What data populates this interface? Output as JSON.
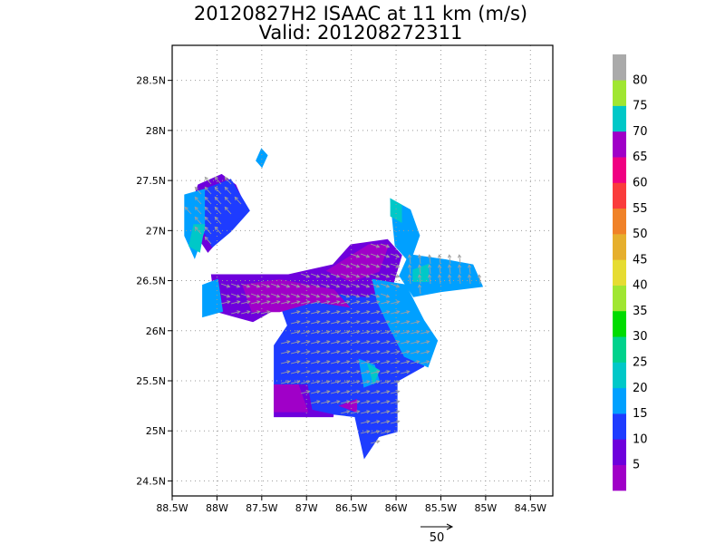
{
  "chart_data": {
    "type": "heatmap",
    "title": "20120827H2 ISAAC at 11 km (m/s)",
    "subtitle": "Valid: 201208272311",
    "xlim": [
      -88.5,
      -84.25
    ],
    "ylim": [
      24.35,
      28.85
    ],
    "x_ticks": [
      {
        "value": -88.5,
        "label": "88.5W"
      },
      {
        "value": -88.0,
        "label": "88W"
      },
      {
        "value": -87.5,
        "label": "87.5W"
      },
      {
        "value": -87.0,
        "label": "87W"
      },
      {
        "value": -86.5,
        "label": "86.5W"
      },
      {
        "value": -86.0,
        "label": "86W"
      },
      {
        "value": -85.5,
        "label": "85.5W"
      },
      {
        "value": -85.0,
        "label": "85W"
      },
      {
        "value": -84.5,
        "label": "84.5W"
      }
    ],
    "y_ticks": [
      {
        "value": 24.5,
        "label": "24.5N"
      },
      {
        "value": 25.0,
        "label": "25N"
      },
      {
        "value": 25.5,
        "label": "25.5N"
      },
      {
        "value": 26.0,
        "label": "26N"
      },
      {
        "value": 26.5,
        "label": "26.5N"
      },
      {
        "value": 27.0,
        "label": "27N"
      },
      {
        "value": 27.5,
        "label": "27.5N"
      },
      {
        "value": 28.0,
        "label": "28N"
      },
      {
        "value": 28.5,
        "label": "28.5N"
      }
    ],
    "grid": true,
    "colorbar": {
      "colors": [
        "#a000c8",
        "#6e00dc",
        "#1e3cff",
        "#00a0ff",
        "#00c8c8",
        "#00d28c",
        "#00dc00",
        "#a0e632",
        "#e6dc32",
        "#e6af2d",
        "#f08228",
        "#fa3c3c",
        "#f00082",
        "#a000c8",
        "#00c8c8",
        "#a0e632",
        "#aaaaaa"
      ],
      "labels": [
        "5",
        "10",
        "15",
        "20",
        "25",
        "30",
        "35",
        "40",
        "45",
        "50",
        "55",
        "60",
        "65",
        "70",
        "75",
        "80"
      ]
    },
    "reference_vector": {
      "value": 50,
      "label": "50"
    },
    "regions": [
      {
        "level": 15,
        "color": "#1e3cff",
        "points": [
          [
            -87.3,
            26.45
          ],
          [
            -86.25,
            26.55
          ],
          [
            -86.1,
            26.3
          ],
          [
            -85.65,
            25.95
          ],
          [
            -85.7,
            25.65
          ],
          [
            -86.0,
            25.5
          ],
          [
            -86.0,
            25.0
          ],
          [
            -86.2,
            24.95
          ],
          [
            -86.35,
            24.75
          ],
          [
            -86.45,
            25.15
          ],
          [
            -86.95,
            25.2
          ],
          [
            -87.1,
            25.4
          ],
          [
            -87.35,
            25.45
          ],
          [
            -87.35,
            25.85
          ],
          [
            -87.2,
            26.05
          ],
          [
            -87.3,
            26.3
          ]
        ]
      },
      {
        "level": 10,
        "color": "#6e00dc",
        "points": [
          [
            -88.05,
            26.55
          ],
          [
            -87.2,
            26.55
          ],
          [
            -86.7,
            26.65
          ],
          [
            -86.5,
            26.85
          ],
          [
            -86.1,
            26.9
          ],
          [
            -85.95,
            26.75
          ],
          [
            -86.05,
            26.45
          ],
          [
            -86.35,
            26.35
          ],
          [
            -86.9,
            26.4
          ],
          [
            -87.3,
            26.25
          ],
          [
            -87.6,
            26.1
          ],
          [
            -88.0,
            26.2
          ]
        ]
      },
      {
        "level": 10,
        "color": "#6e00dc",
        "points": [
          [
            -87.35,
            25.45
          ],
          [
            -87.0,
            25.45
          ],
          [
            -86.95,
            25.2
          ],
          [
            -86.7,
            25.15
          ],
          [
            -87.35,
            25.15
          ]
        ]
      },
      {
        "level": 5,
        "color": "#a000c8",
        "points": [
          [
            -87.7,
            26.45
          ],
          [
            -87.3,
            26.5
          ],
          [
            -87.0,
            26.45
          ],
          [
            -86.7,
            26.4
          ],
          [
            -86.55,
            26.25
          ],
          [
            -86.9,
            26.3
          ],
          [
            -87.3,
            26.2
          ],
          [
            -87.6,
            26.2
          ]
        ]
      },
      {
        "level": 5,
        "color": "#a000c8",
        "points": [
          [
            -86.75,
            26.6
          ],
          [
            -86.3,
            26.85
          ],
          [
            -86.1,
            26.85
          ],
          [
            -86.2,
            26.6
          ],
          [
            -86.5,
            26.5
          ]
        ]
      },
      {
        "level": 5,
        "color": "#a000c8",
        "points": [
          [
            -87.35,
            25.45
          ],
          [
            -87.1,
            25.45
          ],
          [
            -87.0,
            25.2
          ],
          [
            -87.35,
            25.2
          ]
        ]
      },
      {
        "level": 5,
        "color": "#a000c8",
        "points": [
          [
            -86.6,
            25.25
          ],
          [
            -86.45,
            25.2
          ],
          [
            -86.45,
            25.3
          ]
        ]
      },
      {
        "level": 10,
        "color": "#6e00dc",
        "points": [
          [
            -88.2,
            27.45
          ],
          [
            -87.95,
            27.55
          ],
          [
            -87.8,
            27.45
          ],
          [
            -87.7,
            27.25
          ],
          [
            -87.95,
            26.95
          ],
          [
            -88.1,
            26.8
          ],
          [
            -88.25,
            27.0
          ],
          [
            -88.3,
            27.2
          ]
        ]
      },
      {
        "level": 15,
        "color": "#1e3cff",
        "points": [
          [
            -88.15,
            27.4
          ],
          [
            -87.85,
            27.5
          ],
          [
            -87.65,
            27.2
          ],
          [
            -87.85,
            27.0
          ],
          [
            -88.05,
            26.85
          ],
          [
            -88.2,
            27.1
          ]
        ]
      },
      {
        "level": 20,
        "color": "#00a0ff",
        "points": [
          [
            -88.35,
            27.35
          ],
          [
            -88.15,
            27.4
          ],
          [
            -88.15,
            27.0
          ],
          [
            -88.25,
            26.75
          ],
          [
            -88.35,
            26.95
          ]
        ]
      },
      {
        "level": 20,
        "color": "#00a0ff",
        "points": [
          [
            -86.05,
            27.3
          ],
          [
            -85.85,
            27.2
          ],
          [
            -85.75,
            26.95
          ],
          [
            -85.85,
            26.7
          ],
          [
            -86.0,
            26.85
          ]
        ]
      },
      {
        "level": 20,
        "color": "#00a0ff",
        "points": [
          [
            -85.85,
            26.75
          ],
          [
            -85.45,
            26.7
          ],
          [
            -85.15,
            26.65
          ],
          [
            -85.05,
            26.45
          ],
          [
            -85.5,
            26.4
          ],
          [
            -85.8,
            26.35
          ],
          [
            -85.95,
            26.55
          ]
        ]
      },
      {
        "level": 20,
        "color": "#00a0ff",
        "points": [
          [
            -86.25,
            26.5
          ],
          [
            -85.9,
            26.45
          ],
          [
            -85.7,
            26.1
          ],
          [
            -85.55,
            25.9
          ],
          [
            -85.65,
            25.65
          ],
          [
            -85.9,
            25.75
          ],
          [
            -86.1,
            26.1
          ],
          [
            -86.2,
            26.3
          ]
        ]
      },
      {
        "level": 20,
        "color": "#00a0ff",
        "points": [
          [
            -86.4,
            25.7
          ],
          [
            -86.25,
            25.65
          ],
          [
            -86.2,
            25.5
          ],
          [
            -86.35,
            25.45
          ]
        ]
      },
      {
        "level": 20,
        "color": "#00a0ff",
        "points": [
          [
            -88.15,
            26.45
          ],
          [
            -88.0,
            26.5
          ],
          [
            -87.95,
            26.2
          ],
          [
            -88.15,
            26.15
          ]
        ]
      },
      {
        "level": 20,
        "color": "#00a0ff",
        "points": [
          [
            -87.5,
            27.8
          ],
          [
            -87.45,
            27.75
          ],
          [
            -87.5,
            27.65
          ],
          [
            -87.55,
            27.7
          ]
        ]
      },
      {
        "level": 25,
        "color": "#00c8c8",
        "points": [
          [
            -86.05,
            27.3
          ],
          [
            -85.95,
            27.25
          ],
          [
            -85.95,
            27.1
          ],
          [
            -86.05,
            27.15
          ]
        ]
      },
      {
        "level": 25,
        "color": "#00c8c8",
        "points": [
          [
            -88.25,
            27.05
          ],
          [
            -88.15,
            27.05
          ],
          [
            -88.2,
            26.8
          ],
          [
            -88.3,
            26.85
          ]
        ]
      },
      {
        "level": 25,
        "color": "#00c8c8",
        "points": [
          [
            -85.8,
            26.6
          ],
          [
            -85.65,
            26.65
          ],
          [
            -85.65,
            26.5
          ],
          [
            -85.8,
            26.5
          ]
        ]
      },
      {
        "level": 25,
        "color": "#00c8c8",
        "points": [
          [
            -86.3,
            25.65
          ],
          [
            -86.2,
            25.6
          ],
          [
            -86.25,
            25.5
          ]
        ]
      }
    ]
  }
}
